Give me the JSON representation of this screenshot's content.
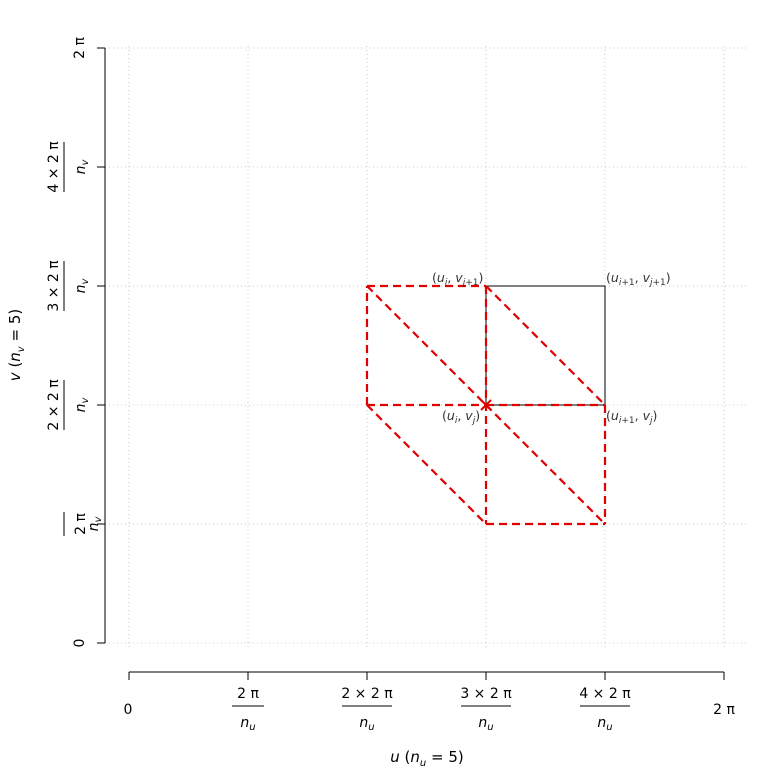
{
  "chart_data": {
    "type": "line",
    "xlabel": "u (n_u = 5)",
    "ylabel": "v (n_v = 5)",
    "x_ticks": [
      {
        "value": 0,
        "label": "0"
      },
      {
        "value": 1,
        "label": "2π / n_u"
      },
      {
        "value": 2,
        "label": "2×2π / n_u"
      },
      {
        "value": 3,
        "label": "3×2π / n_u"
      },
      {
        "value": 4,
        "label": "4×2π / n_u"
      },
      {
        "value": 5,
        "label": "2π"
      }
    ],
    "y_ticks": [
      {
        "value": 0,
        "label": "0"
      },
      {
        "value": 1,
        "label": "2π / n_v"
      },
      {
        "value": 2,
        "label": "2×2π / n_v"
      },
      {
        "value": 3,
        "label": "3×2π / n_v"
      },
      {
        "value": 4,
        "label": "4×2π / n_v"
      },
      {
        "value": 5,
        "label": "2π"
      }
    ],
    "xlim": [
      0,
      5
    ],
    "ylim": [
      0,
      5
    ],
    "grid": true,
    "grid_style": "dotted",
    "cell_square": {
      "color": "#000000",
      "style": "solid",
      "points": [
        [
          3,
          2
        ],
        [
          4,
          2
        ],
        [
          4,
          3
        ],
        [
          3,
          3
        ],
        [
          3,
          2
        ]
      ]
    },
    "triangle_edges": {
      "color": "#e00000",
      "style": "dashed",
      "segments": [
        [
          [
            2,
            3
          ],
          [
            3,
            3
          ]
        ],
        [
          [
            2,
            2
          ],
          [
            2,
            3
          ]
        ],
        [
          [
            2,
            2
          ],
          [
            3,
            2
          ]
        ],
        [
          [
            2,
            3
          ],
          [
            3,
            2
          ]
        ],
        [
          [
            3,
            3
          ],
          [
            3,
            1
          ]
        ],
        [
          [
            3,
            2
          ],
          [
            4,
            2
          ]
        ],
        [
          [
            3,
            3
          ],
          [
            4,
            2
          ]
        ],
        [
          [
            4,
            2
          ],
          [
            4,
            1
          ]
        ],
        [
          [
            3,
            1
          ],
          [
            4,
            1
          ]
        ],
        [
          [
            3,
            2
          ],
          [
            4,
            1
          ]
        ],
        [
          [
            2,
            2
          ],
          [
            3,
            1
          ]
        ]
      ]
    },
    "center_point": {
      "x": 3,
      "y": 2,
      "marker": "x",
      "color": "#e00000"
    },
    "point_labels": [
      {
        "x": 3,
        "y": 3,
        "text": "(u_i, v_j+1)"
      },
      {
        "x": 4,
        "y": 3,
        "text": "(u_i+1, v_j+1)"
      },
      {
        "x": 3,
        "y": 2,
        "text": "(u_i, v_j)"
      },
      {
        "x": 4,
        "y": 2,
        "text": "(u_i+1, v_j)"
      }
    ]
  }
}
